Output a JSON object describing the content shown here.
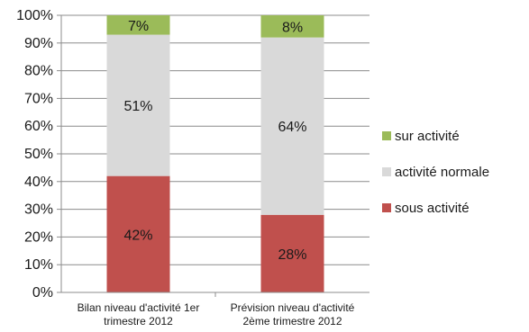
{
  "chart_data": {
    "type": "bar",
    "stacked": true,
    "percent": true,
    "categories": [
      [
        "Bilan niveau d'activité  1er",
        "trimestre 2012"
      ],
      [
        "Prévision niveau d'activité",
        "2ème trimestre 2012"
      ]
    ],
    "series": [
      {
        "name": "sous activité",
        "color": "#c0504d",
        "values": [
          42,
          28
        ]
      },
      {
        "name": "activité normale",
        "color": "#d9d9d9",
        "values": [
          51,
          64
        ]
      },
      {
        "name": "sur activité",
        "color": "#9bbb59",
        "values": [
          7,
          8
        ]
      }
    ],
    "data_labels": [
      [
        "42%",
        "51%",
        "7%"
      ],
      [
        "28%",
        "64%",
        "8%"
      ]
    ],
    "ylim": [
      0,
      100
    ],
    "yticks": [
      "0%",
      "10%",
      "20%",
      "30%",
      "40%",
      "50%",
      "60%",
      "70%",
      "80%",
      "90%",
      "100%"
    ],
    "gridlines": true,
    "legend_position": "right",
    "legend_order": [
      "sur activité",
      "activité normale",
      "sous activité"
    ],
    "title": "",
    "xlabel": "",
    "ylabel": ""
  }
}
